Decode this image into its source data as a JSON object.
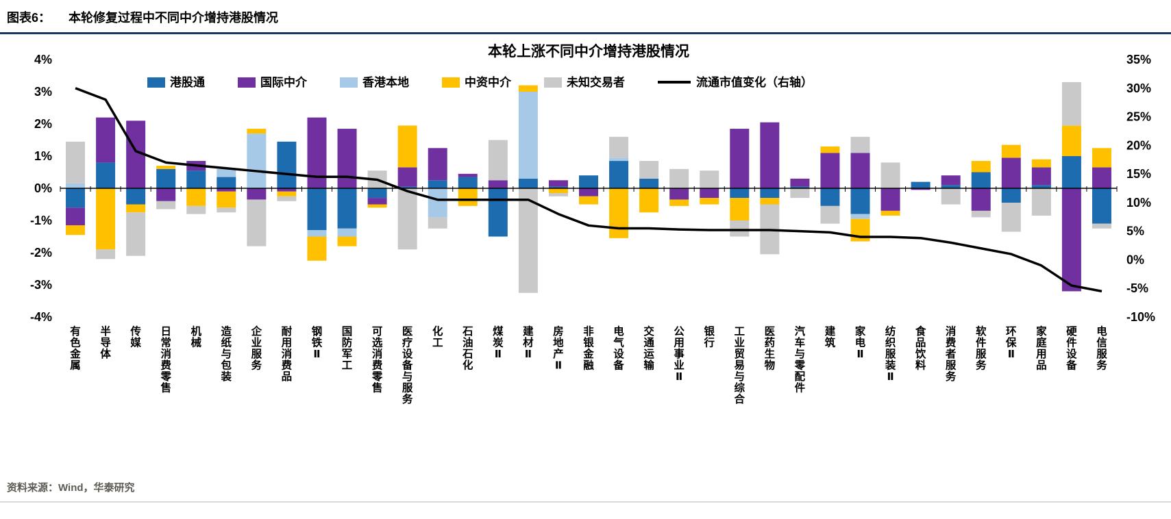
{
  "header": {
    "figure_label": "图表6：",
    "title": "本轮修复过程中不同中介增持港股情况"
  },
  "footer": {
    "source": "资料来源：Wind，华泰研究"
  },
  "chart_data": {
    "type": "bar",
    "subtype": "stacked-bar-with-line",
    "title": "本轮上涨不同中介增持港股情况",
    "legend_position": "top",
    "grid": false,
    "left_axis": {
      "min": -4,
      "max": 4,
      "step": 1,
      "format": "percent"
    },
    "right_axis": {
      "min": -10,
      "max": 35,
      "step": 5,
      "format": "percent"
    },
    "categories": [
      "有色金属",
      "半导体",
      "传媒",
      "日常消费零售",
      "机械",
      "造纸与包装",
      "企业服务",
      "耐用消费品",
      "钢铁Ⅱ",
      "国防军工",
      "可选消费零售",
      "医疗设备与服务",
      "化工",
      "石油石化",
      "煤炭Ⅱ",
      "建材Ⅱ",
      "房地产Ⅱ",
      "非银金融",
      "电气设备",
      "交通运输",
      "公用事业Ⅱ",
      "银行",
      "工业贸易与综合",
      "医药生物",
      "汽车与零配件",
      "建筑",
      "家电Ⅱ",
      "纺织服装Ⅱ",
      "食品饮料",
      "消费者服务",
      "软件服务",
      "环保Ⅱ",
      "家庭用品",
      "硬件设备",
      "电信服务"
    ],
    "series": [
      {
        "name": "港股通",
        "color": "#1E6CB0",
        "values": [
          -0.6,
          0.8,
          -0.5,
          0.6,
          0.55,
          0.35,
          0,
          1.45,
          -1.3,
          -1.25,
          -0.3,
          0.05,
          0.25,
          0.35,
          -1.5,
          0.3,
          0.05,
          0.4,
          0.85,
          0.3,
          0,
          0,
          -0.3,
          -0.3,
          0.05,
          -0.55,
          -0.8,
          0,
          0.2,
          0.1,
          0.5,
          -0.45,
          0.1,
          1.0,
          -1.1
        ]
      },
      {
        "name": "国际中介",
        "color": "#7030A0",
        "values": [
          -0.55,
          1.4,
          2.1,
          -0.4,
          0.3,
          -0.1,
          -0.35,
          -0.1,
          2.2,
          1.85,
          -0.2,
          0.6,
          1.0,
          0.1,
          0.25,
          0,
          0.2,
          -0.25,
          0,
          0,
          -0.35,
          -0.3,
          1.85,
          2.05,
          0.25,
          1.1,
          1.1,
          -0.7,
          -0.05,
          0.3,
          -0.7,
          0.95,
          0.55,
          -3.2,
          0.65
        ]
      },
      {
        "name": "香港本地",
        "color": "#A6C9E8",
        "values": [
          0.15,
          0,
          0,
          0,
          0,
          0.25,
          1.7,
          0,
          -0.2,
          -0.25,
          0,
          0,
          -0.9,
          0,
          0,
          2.7,
          0,
          0,
          0.1,
          0,
          0,
          0,
          0,
          0,
          0,
          0,
          -0.15,
          0,
          0,
          0,
          0,
          0,
          0,
          0,
          0
        ]
      },
      {
        "name": "中资中介",
        "color": "#FFC000",
        "values": [
          -0.3,
          -1.9,
          -0.25,
          0.1,
          -0.55,
          -0.5,
          0.15,
          -0.15,
          -0.75,
          -0.3,
          -0.1,
          1.3,
          0,
          -0.55,
          0,
          0.2,
          -0.15,
          -0.25,
          -1.55,
          -0.75,
          -0.2,
          -0.2,
          -0.7,
          -0.2,
          0,
          0.2,
          -0.7,
          -0.15,
          0,
          0,
          0.35,
          0.4,
          0.25,
          0.95,
          0.6
        ]
      },
      {
        "name": "未知交易者",
        "color": "#C9C9C9",
        "values": [
          1.3,
          -0.3,
          -1.35,
          -0.25,
          -0.25,
          -0.15,
          -1.45,
          -0.15,
          0,
          0,
          0.55,
          -1.9,
          -0.35,
          0,
          1.25,
          -3.25,
          -0.1,
          0,
          0.65,
          0.55,
          0.6,
          0.55,
          -0.5,
          -1.55,
          -0.3,
          -0.55,
          0.5,
          0.8,
          0,
          -0.5,
          -0.2,
          -0.9,
          -0.85,
          1.35,
          -0.15
        ]
      }
    ],
    "line_series": {
      "name": "流通市值变化（右轴）",
      "color": "#000000",
      "axis": "right",
      "values": [
        30,
        28,
        19,
        17,
        16.5,
        16,
        15.5,
        15,
        14.5,
        14.5,
        14,
        12,
        10.5,
        10.5,
        10.5,
        10.5,
        8,
        6,
        5.5,
        5.5,
        5.3,
        5.2,
        5.2,
        5.2,
        5,
        4.8,
        4,
        4,
        3.8,
        3,
        2,
        1,
        -1,
        -4.5,
        -5.5
      ]
    }
  }
}
